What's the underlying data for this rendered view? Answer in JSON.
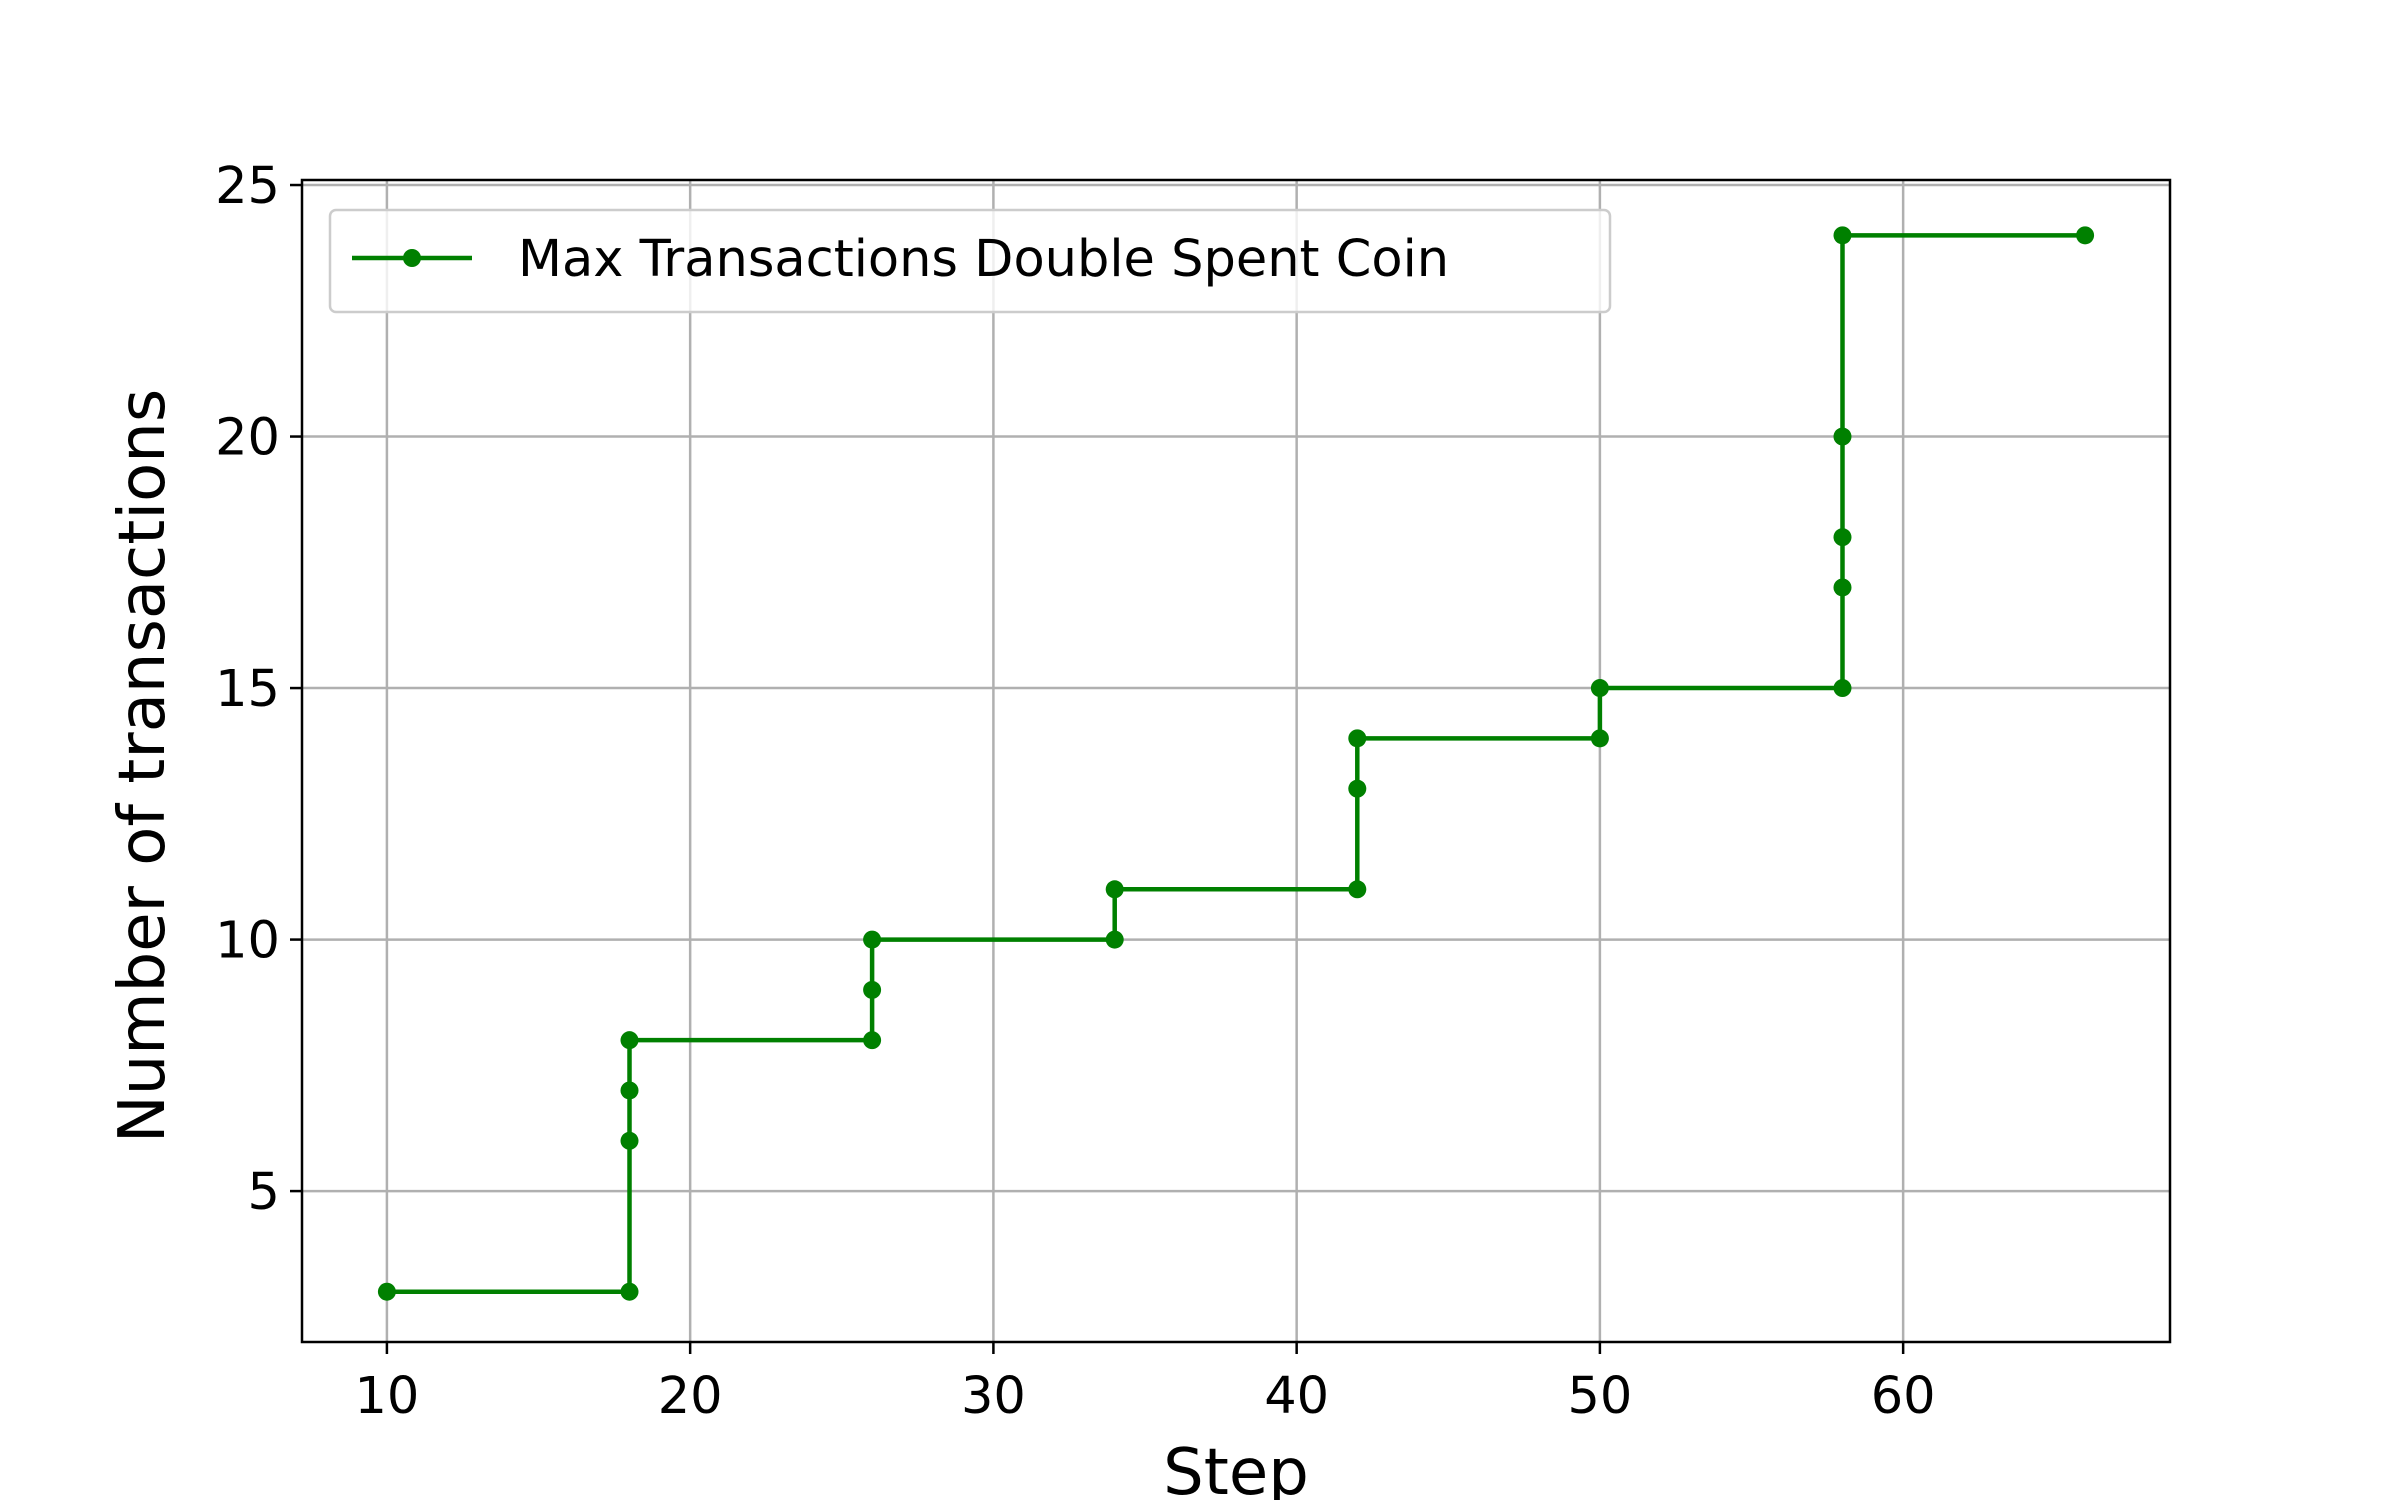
{
  "chart_data": {
    "type": "line",
    "drawstyle": "steps-post",
    "title": "",
    "xlabel": "Step",
    "ylabel": "Number of transactions",
    "xlim": [
      7.2,
      68.8
    ],
    "ylim": [
      2.0,
      25.1
    ],
    "xticks": [
      10,
      20,
      30,
      40,
      50,
      60
    ],
    "yticks": [
      5,
      10,
      15,
      20,
      25
    ],
    "grid": true,
    "legend_position": "top-left",
    "series": [
      {
        "name": "Max Transactions Double Spent Coin",
        "color": "#008000",
        "marker": "circle",
        "x": [
          10,
          18,
          18,
          18,
          18,
          26,
          26,
          26,
          34,
          34,
          42,
          42,
          42,
          50,
          50,
          58,
          58,
          58,
          58,
          58,
          66
        ],
        "y": [
          3,
          3,
          6,
          7,
          8,
          8,
          9,
          10,
          10,
          11,
          11,
          13,
          14,
          14,
          15,
          15,
          17,
          18,
          20,
          24,
          24
        ]
      }
    ]
  }
}
